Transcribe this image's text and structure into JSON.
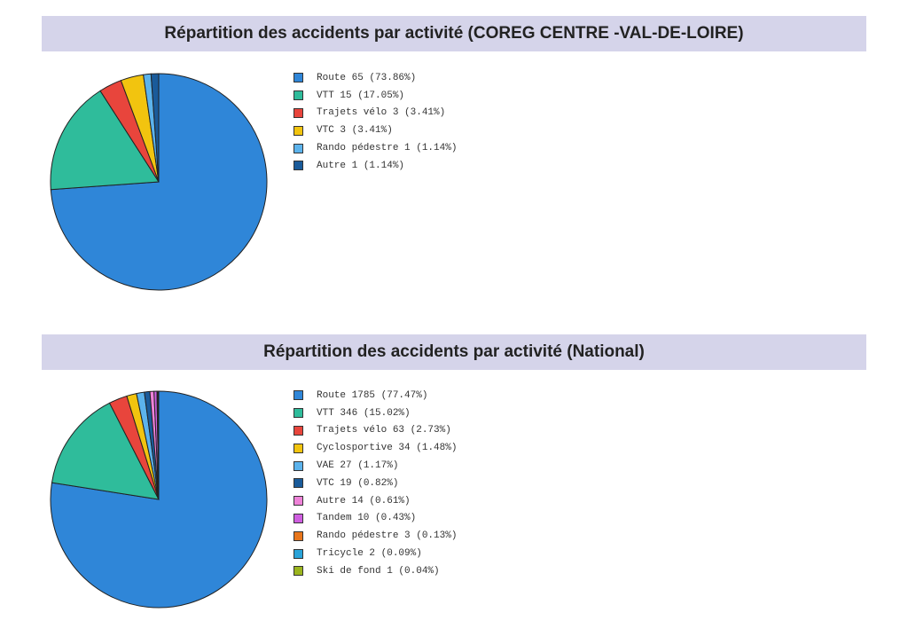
{
  "chart_data": [
    {
      "type": "pie",
      "title": "Répartition des accidents par activité (COREG CENTRE -VAL-DE-LOIRE)",
      "slices": [
        {
          "label": "Route",
          "value": 65,
          "percent": "73.86%",
          "color": "#2f86d8"
        },
        {
          "label": "VTT",
          "value": 15,
          "percent": "17.05%",
          "color": "#2fbc9b"
        },
        {
          "label": "Trajets vélo",
          "value": 3,
          "percent": "3.41%",
          "color": "#e8453c"
        },
        {
          "label": "VTC",
          "value": 3,
          "percent": "3.41%",
          "color": "#f2c40f"
        },
        {
          "label": "Rando pédestre",
          "value": 1,
          "percent": "1.14%",
          "color": "#5cb3ec"
        },
        {
          "label": "Autre",
          "value": 1,
          "percent": "1.14%",
          "color": "#1a5b9a"
        }
      ]
    },
    {
      "type": "pie",
      "title": "Répartition des accidents par activité (National)",
      "slices": [
        {
          "label": "Route",
          "value": 1785,
          "percent": "77.47%",
          "color": "#2f86d8"
        },
        {
          "label": "VTT",
          "value": 346,
          "percent": "15.02%",
          "color": "#2fbc9b"
        },
        {
          "label": "Trajets vélo",
          "value": 63,
          "percent": "2.73%",
          "color": "#e8453c"
        },
        {
          "label": "Cyclosportive",
          "value": 34,
          "percent": "1.48%",
          "color": "#f2c40f"
        },
        {
          "label": "VAE",
          "value": 27,
          "percent": "1.17%",
          "color": "#5cb3ec"
        },
        {
          "label": "VTC",
          "value": 19,
          "percent": "0.82%",
          "color": "#1a5b9a"
        },
        {
          "label": "Autre",
          "value": 14,
          "percent": "0.61%",
          "color": "#ee82d8"
        },
        {
          "label": "Tandem",
          "value": 10,
          "percent": "0.43%",
          "color": "#cf5ee0"
        },
        {
          "label": "Rando pédestre",
          "value": 3,
          "percent": "0.13%",
          "color": "#e8761c"
        },
        {
          "label": "Tricycle",
          "value": 2,
          "percent": "0.09%",
          "color": "#2aa3d8"
        },
        {
          "label": "Ski de fond",
          "value": 1,
          "percent": "0.04%",
          "color": "#9bb51e"
        }
      ]
    }
  ]
}
